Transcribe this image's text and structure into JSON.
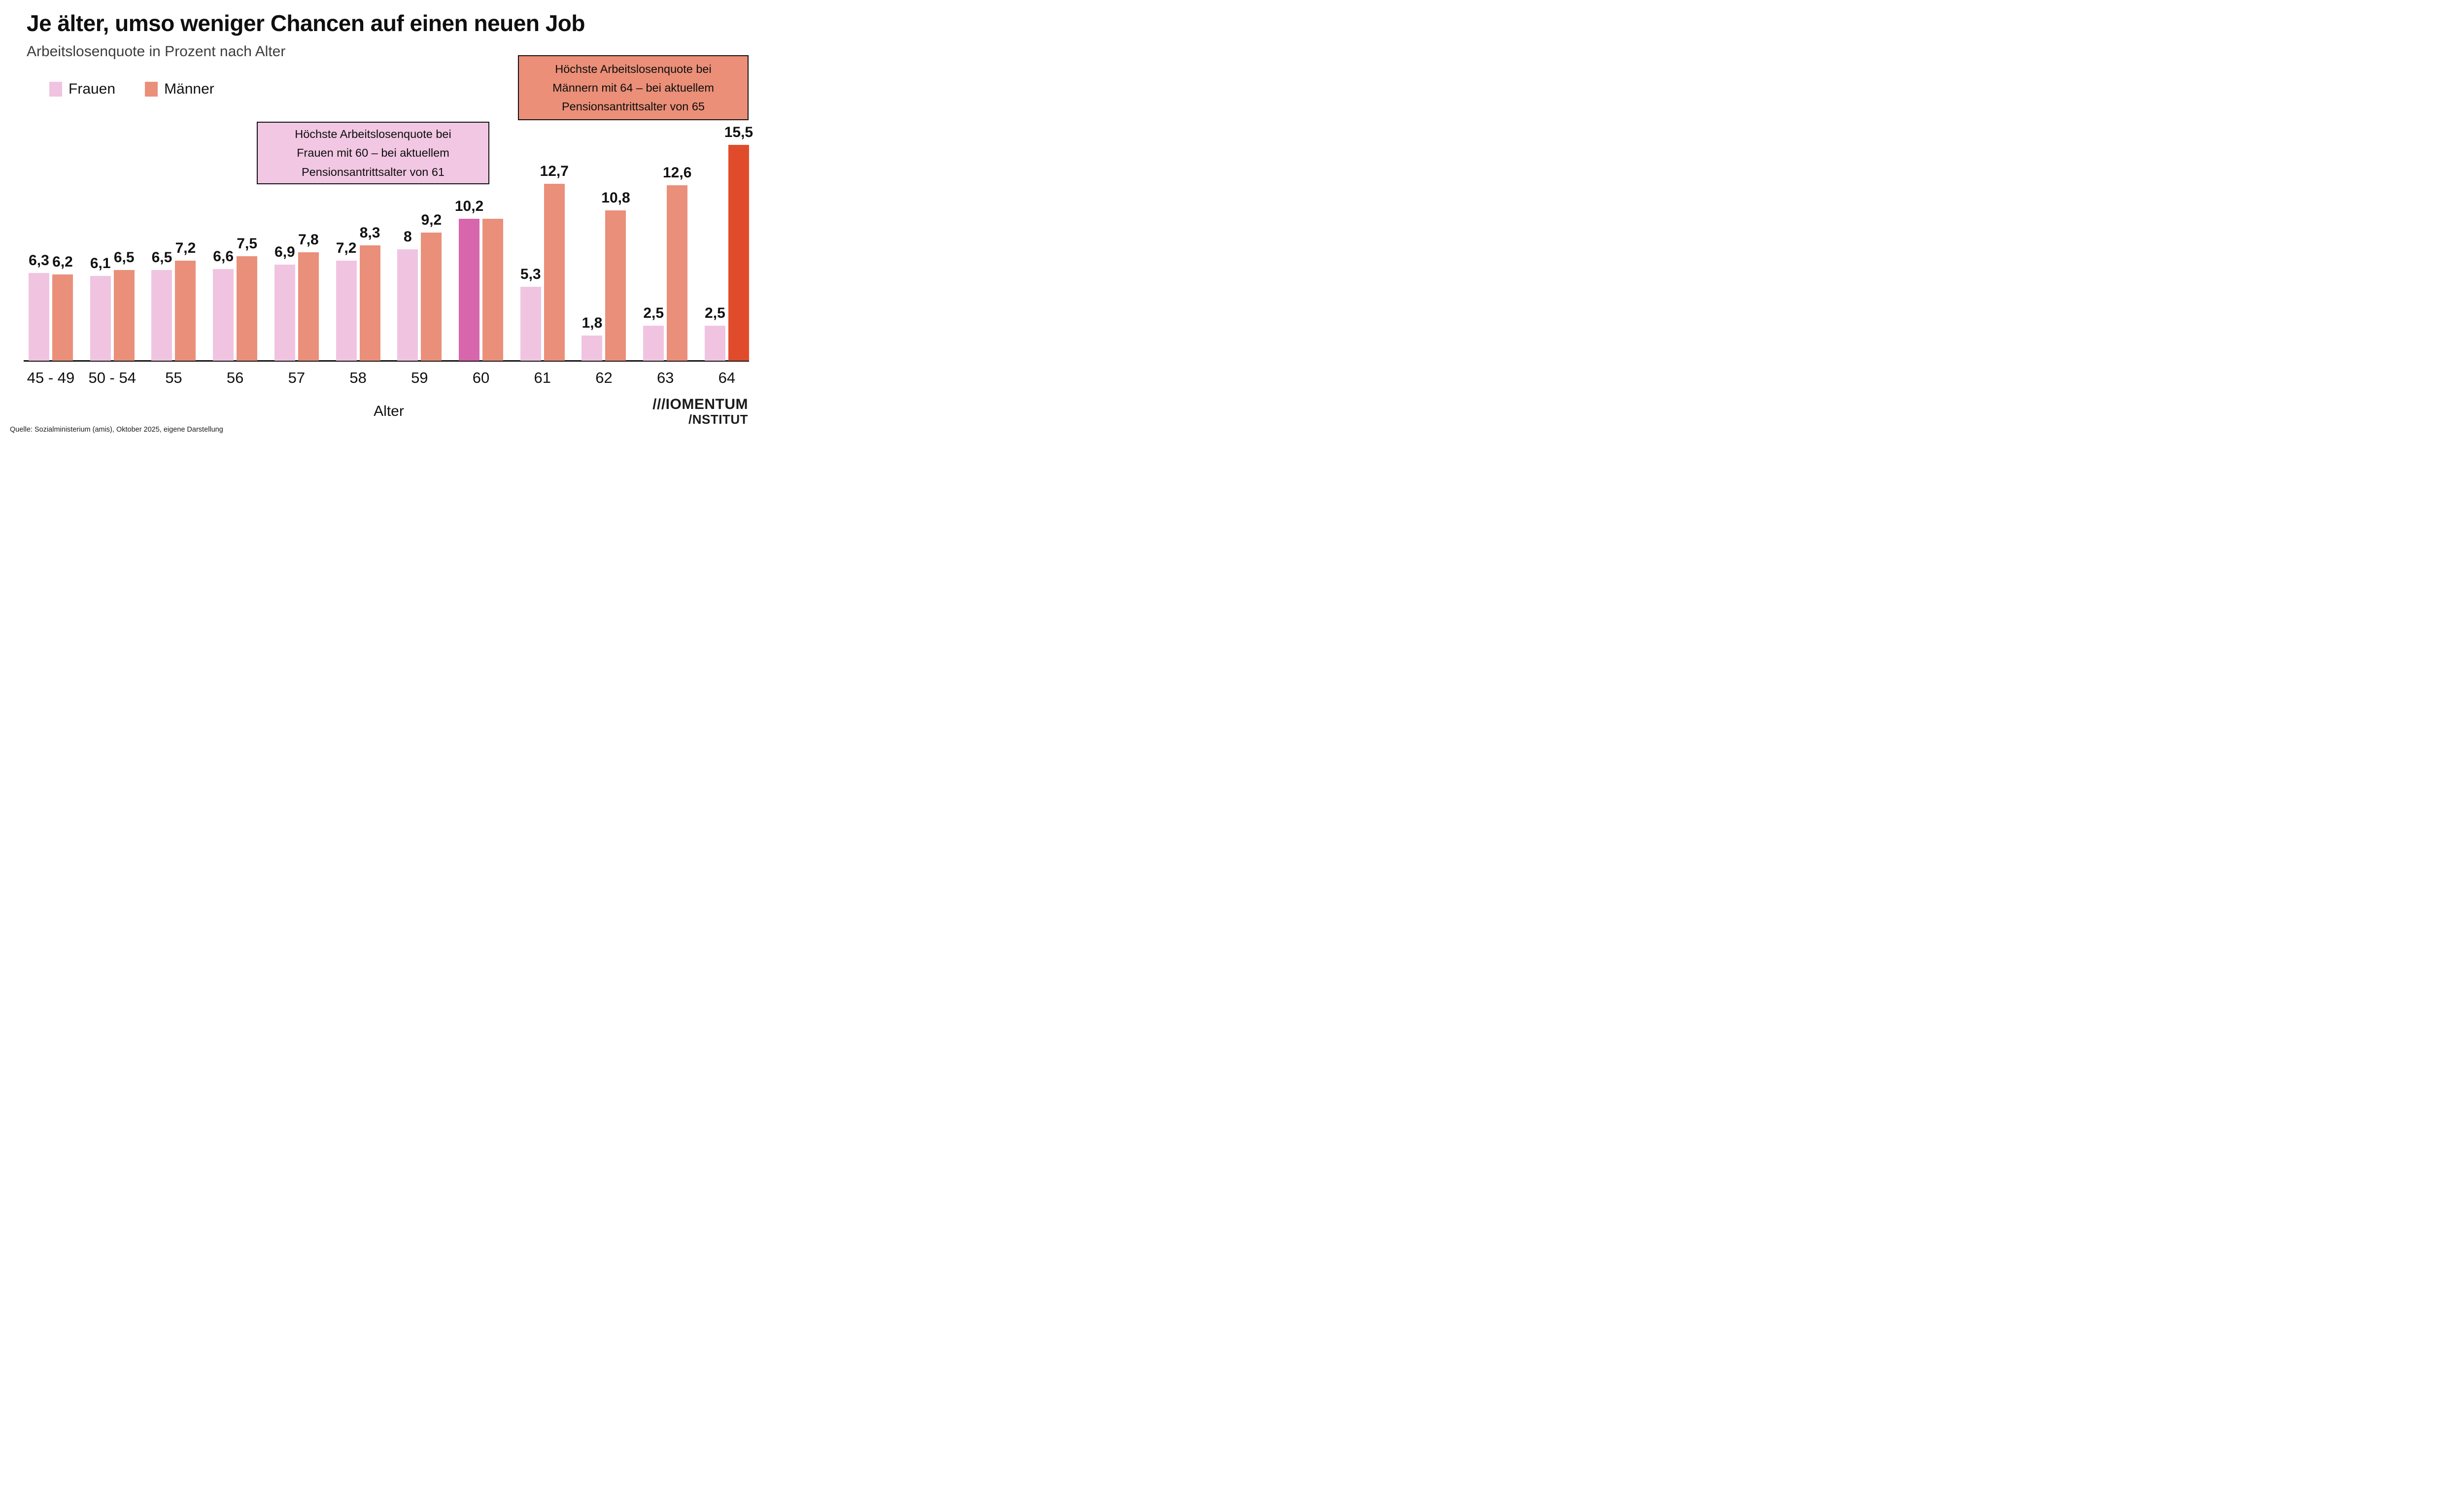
{
  "header": {
    "title": "Je älter, umso weniger Chancen auf einen neuen Job",
    "subtitle": "Arbeitslosenquote in Prozent nach Alter"
  },
  "legend": [
    {
      "label": "Frauen",
      "color": "#F0C4E0"
    },
    {
      "label": "Männer",
      "color": "#EA8F7A"
    }
  ],
  "annotations": {
    "frauen": {
      "bg": "#F2C7E3",
      "lines": [
        "Höchste Arbeitslosenquote bei",
        "Frauen mit 60 – bei aktuellem",
        "Pensionsantrittsalter von 61"
      ]
    },
    "maenner": {
      "bg": "#EB8F78",
      "lines": [
        "Höchste Arbeitslosenquote bei",
        "Männern mit 64 – bei aktuellem",
        "Pensionsantrittsalter von 65"
      ]
    }
  },
  "chart_data": {
    "type": "bar",
    "title": "Je älter, umso weniger Chancen auf einen neuen Job",
    "subtitle": "Arbeitslosenquote in Prozent nach Alter",
    "xlabel": "Alter",
    "ylabel": "Arbeitslosenquote in Prozent",
    "ylim": [
      0,
      15.5
    ],
    "grid": false,
    "legend_position": "top-left",
    "categories": [
      "45 - 49",
      "50 - 54",
      "55",
      "56",
      "57",
      "58",
      "59",
      "60",
      "61",
      "62",
      "63",
      "64"
    ],
    "series": [
      {
        "name": "Frauen",
        "color": "#F0C4E0",
        "values": [
          6.3,
          6.1,
          6.5,
          6.6,
          6.9,
          7.2,
          8,
          10.2,
          5.3,
          1.8,
          2.5,
          2.5
        ],
        "labels": [
          "6,3",
          "6,1",
          "6,5",
          "6,6",
          "6,9",
          "7,2",
          "8",
          "10,2",
          "5,3",
          "1,8",
          "2,5",
          "2,5"
        ]
      },
      {
        "name": "Männer",
        "color": "#EA8F7A",
        "values": [
          6.2,
          6.5,
          7.2,
          7.5,
          7.8,
          8.3,
          9.2,
          10.2,
          12.7,
          10.8,
          12.6,
          15.5
        ],
        "labels": [
          "6,2",
          "6,5",
          "7,2",
          "7,5",
          "7,8",
          "8,3",
          "9,2",
          "",
          "12,7",
          "10,8",
          "12,6",
          "15,5"
        ]
      }
    ],
    "highlights": [
      {
        "series": "Frauen",
        "category": "60",
        "color": "#D766AC"
      },
      {
        "series": "Männer",
        "category": "64",
        "color": "#E04C2B"
      }
    ]
  },
  "colors": {
    "frauen": "#F0C4E0",
    "maenner": "#EA8F7A",
    "frauen_highlight": "#D766AC",
    "maenner_highlight": "#E04C2B",
    "axis": "#111111"
  },
  "footer": {
    "source": "Quelle: Sozialministerium (amis), Oktober 2025, eigene Darstellung",
    "logo_line1": "///IOMENTUM",
    "logo_line2": "/NSTITUT"
  }
}
